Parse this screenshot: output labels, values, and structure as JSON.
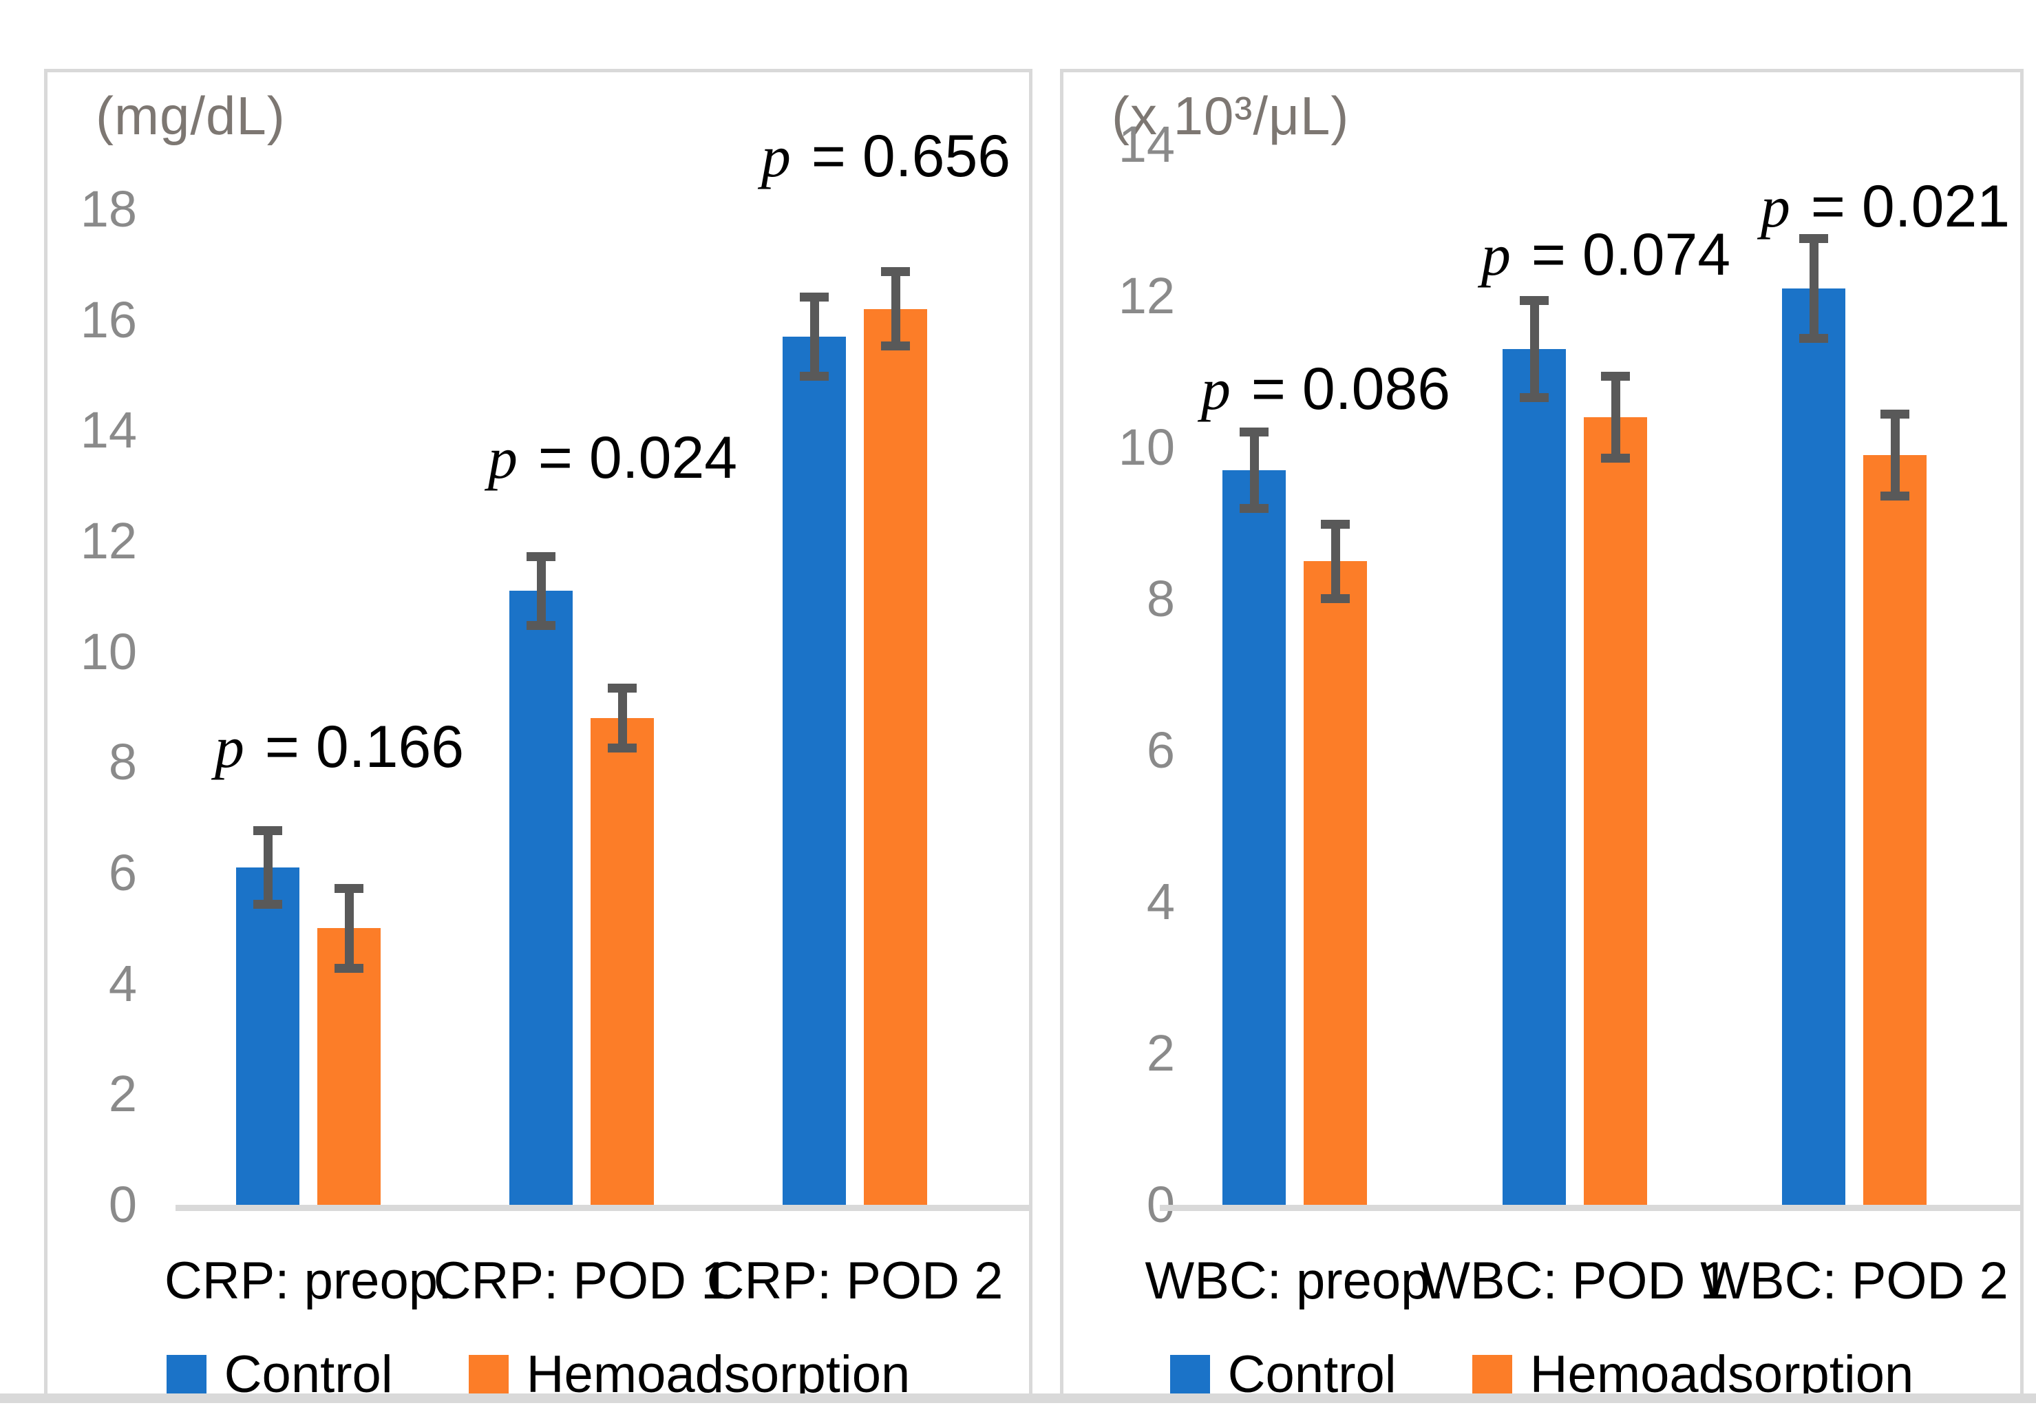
{
  "figure": {
    "background_color": "#FFFFFF",
    "panel_border_color": "#D9D9D9"
  },
  "colors": {
    "control": "#1B73C8",
    "hemoadsorption": "#FC7D28",
    "error_bar": "#595959",
    "axis_line": "#D9D9D9",
    "tick_text": "#8A8A8A",
    "axis_title_text": "#7D7772",
    "label_text": "#000000"
  },
  "chart_data": [
    {
      "type": "bar",
      "y_axis_unit_label": "(mg/dL)",
      "categories": [
        "CRP: preop.",
        "CRP: POD 1",
        "CRP: POD 2"
      ],
      "series": [
        {
          "name": "Control",
          "color": "#1B73C8",
          "values": [
            6.1,
            11.1,
            15.7
          ],
          "errors": [
            0.75,
            0.7,
            0.8
          ]
        },
        {
          "name": "Hemoadsorption",
          "color": "#FC7D28",
          "values": [
            5.0,
            8.8,
            16.2
          ],
          "errors": [
            0.8,
            0.62,
            0.75
          ]
        }
      ],
      "p_labels": [
        "p = 0.166",
        "p = 0.024",
        "p = 0.656"
      ],
      "y_tick_labels": [
        "18",
        "16",
        "14",
        "12",
        "10",
        "8",
        "6",
        "4",
        "2",
        "0"
      ],
      "ylim": [
        0,
        18
      ],
      "y_tick_step": 2,
      "grid": false,
      "legend_position": "bottom",
      "error_bars": true
    },
    {
      "type": "bar",
      "y_axis_unit_label": "(x 10³/μL)",
      "categories": [
        "WBC: preop.",
        "WBC: POD 1",
        "WBC: POD 2"
      ],
      "series": [
        {
          "name": "Control",
          "color": "#1B73C8",
          "values": [
            9.7,
            11.3,
            12.1
          ],
          "errors": [
            0.56,
            0.7,
            0.72
          ]
        },
        {
          "name": "Hemoadsorption",
          "color": "#FC7D28",
          "values": [
            8.5,
            10.4,
            9.9
          ],
          "errors": [
            0.55,
            0.6,
            0.6
          ]
        }
      ],
      "p_labels": [
        "p = 0.086",
        "p = 0.074",
        "p = 0.021"
      ],
      "y_tick_labels": [
        "14",
        "12",
        "10",
        "8",
        "6",
        "4",
        "2",
        "0"
      ],
      "ylim": [
        0,
        14
      ],
      "y_tick_step": 2,
      "grid": false,
      "legend_position": "bottom",
      "error_bars": true
    }
  ]
}
